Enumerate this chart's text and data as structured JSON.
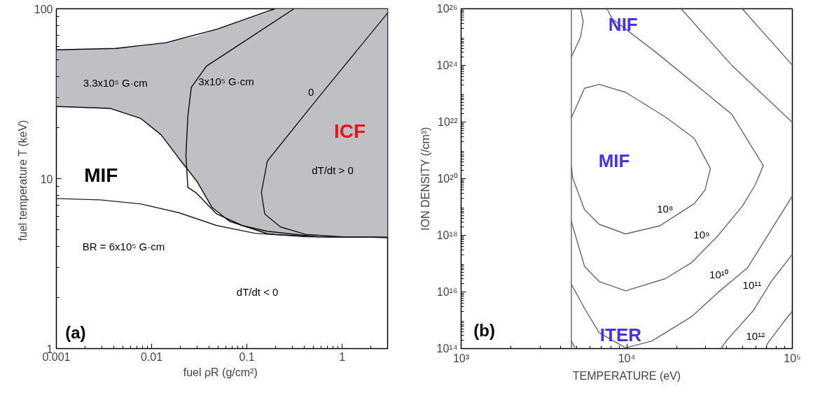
{
  "chart_data": [
    {
      "type": "line",
      "log": "xy",
      "xlabel": "fuel ρR  (g/cm²)",
      "ylabel": "fuel temperature T  (keV)",
      "xlim": [
        0.001,
        3
      ],
      "ylim": [
        1,
        100
      ],
      "xticks": [
        0.001,
        0.01,
        0.1,
        1
      ],
      "yticks": [
        1,
        10,
        100
      ],
      "grid": false,
      "series": [
        {
          "type": "line",
          "color": "#040404",
          "x": [
            0.001,
            0.0042,
            0.0141,
            0.0482,
            0.197
          ],
          "values": [
            57.3,
            58.4,
            63.1,
            75.7,
            100
          ]
        },
        {
          "type": "line",
          "color": "#080808",
          "x": [
            0.001,
            0.0037,
            0.0077,
            0.0126,
            0.0203,
            0.0297,
            0.0428,
            0.0659,
            0.164,
            0.197,
            0.56,
            3
          ],
          "values": [
            26.6,
            25.9,
            22.6,
            18.1,
            12.7,
            9.7,
            6.8,
            5.6,
            4.74,
            4.7,
            4.55,
            4.51
          ],
          "lower": [
            26.6,
            25.9,
            22.6,
            18.1,
            12.7,
            9.7,
            6.8,
            5.6,
            4.74,
            4.7,
            4.55,
            4.51
          ],
          "upper": [
            57.3,
            58.3,
            60,
            62.5,
            66,
            69,
            74,
            80,
            95,
            100,
            100,
            100
          ]
        },
        {
          "type": "line",
          "color": "#0c0c0c",
          "x": [
            0.313,
            0.0893,
            0.0376,
            0.0261,
            0.024,
            0.0229,
            0.024,
            0.0297,
            0.0482,
            0.0893,
            0.164,
            0.56,
            3
          ],
          "values": [
            100,
            63.1,
            45.9,
            34.5,
            23.3,
            13.7,
            8.9,
            8.2,
            6.2,
            5.3,
            4.9,
            4.55,
            4.51
          ]
        },
        {
          "type": "line",
          "color": "#161616",
          "x": [
            3,
            0.56,
            0.164,
            0.142,
            0.154,
            0.225,
            0.414,
            1.03,
            3
          ],
          "values": [
            94.4,
            29.9,
            12.7,
            8.3,
            6.2,
            5.2,
            4.7,
            4.55,
            4.51
          ]
        },
        {
          "type": "line",
          "color": "#202020",
          "x": [
            0.001,
            0.0029,
            0.0077,
            0.0194,
            0.0482,
            0.122,
            0.414,
            3
          ],
          "values": [
            7.64,
            7.5,
            7.1,
            6.3,
            5.3,
            4.77,
            4.55,
            4.51
          ]
        }
      ],
      "annotations": [
        "3.3x10⁵ G·cm",
        {
          "text": "3x10⁵ G·cm",
          "x": 0.0261,
          "y": 34.5
        },
        {
          "text": "0",
          "x": 0.56,
          "y": 29.9
        },
        "ICF",
        "dT/dt > 0",
        "MIF",
        "BR = 6x10⁵ G·cm",
        "dT/dt < 0",
        "(a)"
      ]
    },
    {
      "type": "line",
      "log": "xy",
      "xlabel": "TEMPERATURE (eV)",
      "ylabel": "ION DENSITY (/cm³)",
      "xlim": [
        1000,
        100000
      ],
      "ylim": [
        100000000000000.0,
        1e+26
      ],
      "xticks": [
        {
          "value": 1000,
          "label": "10³"
        },
        {
          "value": 10000,
          "label": "10⁴"
        },
        {
          "value": 100000,
          "label": "10⁵"
        }
      ],
      "yticks": [
        {
          "value": 100000000000000.0,
          "label": "10¹⁴"
        },
        {
          "value": 1e+16,
          "label": "10¹⁶"
        },
        {
          "value": 1e+18,
          "label": "10¹⁸"
        },
        {
          "value": 1e+20,
          "label": "10²⁰"
        },
        {
          "value": 1e+22,
          "label": "10²²"
        },
        {
          "value": 1e+24,
          "label": "10²⁴"
        },
        {
          "value": 1e+26,
          "label": "10²⁶"
        }
      ],
      "grid": false,
      "ref_lines": [
        {
          "axis": "x",
          "value": 4630,
          "color": "#555555"
        }
      ],
      "series": [
        {
          "color": "#666666",
          "x": [
            4630,
            5260,
            5460,
            5260
          ],
          "values": [
            1.95e+24,
            1e+25,
            3.47e+25,
            1e+26
          ]
        },
        {
          "color": "#666666",
          "x": [
            7600,
            8180,
            14800,
            43000,
            66800,
            59800,
            49800,
            35700,
            24700,
            17100,
            9840,
            6820,
            5560,
            4630
          ],
          "values": [
            1e+26,
            4.37e+25,
            3.09e+24,
            1.91e+22,
            2.88e+20,
            6.17e+19,
            1.05e+19,
            1e+18,
            1.1e+17,
            2.95e+16,
            1.1e+16,
            2.34e+16,
            7.94e+16,
            3.09e+18
          ]
        },
        {
          "color": "#666666",
          "x": [
            4630,
            5560,
            6820,
            9840,
            17100,
            25600,
            32000,
            29700,
            25600,
            15900,
            9840,
            6820,
            5560,
            4720,
            4630
          ],
          "values": [
            1.38e+22,
            1.55e+23,
            2.14e+23,
            1.12e+23,
            1.51e+22,
            2.63e+21,
            2.29e+20,
            3.98e+19,
            1.32e+19,
            2.19e+18,
            1.12e+18,
            2.45e+18,
            8.13e+18,
            1.05e+20,
            2.57e+20
          ]
        },
        {
          "color": "#666666",
          "x": [
            100000,
            53600,
            35700,
            24700,
            14200,
            9840,
            6820,
            5560,
            4630
          ],
          "values": [
            2.45e+19,
            7.08e+16,
            9770000000000000.0,
            1350000000000000.0,
            186000000000000.0,
            107000000000000.0,
            363000000000000.0,
            2630000000000000.0,
            1.86e+16
          ]
        },
        {
          "color": "#666666",
          "x": [
            21300,
            43000,
            100000
          ],
          "values": [
            1e+26,
            1.02e+24,
            9.77e+21
          ]
        },
        {
          "color": "#666666",
          "x": [
            100000,
            74600,
            57700,
            39900,
            37100
          ],
          "values": [
            2.14e+17,
            2.34e+16,
            2090000000000000.0,
            186000000000000.0,
            100000000000000.0
          ]
        },
        {
          "color": "#666666",
          "x": [
            49800,
            100000
          ],
          "values": [
            1e+26,
            1.02e+24
          ]
        },
        {
          "color": "#666666",
          "x": [
            100000,
            89700,
            70600,
            69300
          ],
          "values": [
            2090000000000000.0,
            955000000000000.0,
            148000000000000.0,
            100000000000000.0
          ]
        },
        {
          "color": "#666666",
          "x": [
            4630,
            4900
          ],
          "values": [
            186000000000000.0,
            100000000000000.0
          ]
        }
      ],
      "annotations": [
        "NIF",
        "MIF",
        "ITER",
        {
          "text": "10⁸",
          "x": 20200,
          "y": 5.4e+18
        },
        {
          "text": "10⁹",
          "x": 33600,
          "y": 6.9e+17
        },
        {
          "text": "10¹⁰",
          "x": 43400,
          "y": 2.6e+16
        },
        {
          "text": "10¹¹",
          "x": 68900,
          "y": 1.1e+16
        },
        {
          "text": "10¹²",
          "x": 72300,
          "y": 180000000000000.0
        },
        "(b)"
      ]
    }
  ]
}
